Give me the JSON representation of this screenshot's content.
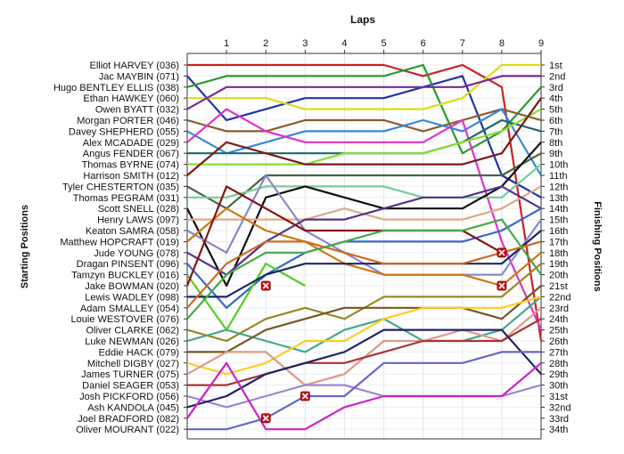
{
  "chart_data": {
    "type": "line",
    "title": "Laps",
    "ylabel_left": "Starting Positions",
    "ylabel_right": "Finishing Positions",
    "laps": [
      "1",
      "2",
      "3",
      "4",
      "5",
      "6",
      "7",
      "8",
      "9"
    ],
    "positions": [
      "1st",
      "2nd",
      "3rd",
      "4th",
      "5th",
      "6th",
      "7th",
      "8th",
      "9th",
      "10th",
      "11th",
      "12th",
      "13th",
      "14th",
      "15th",
      "16th",
      "17th",
      "18th",
      "19th",
      "20th",
      "21st",
      "22nd",
      "23rd",
      "24th",
      "25th",
      "26th",
      "27th",
      "28th",
      "29th",
      "30th",
      "31st",
      "32nd",
      "33rd",
      "34th"
    ],
    "grid": true,
    "series": [
      {
        "name": "Elliot HARVEY (036)",
        "color": "#cc2222",
        "values": [
          1,
          1,
          1,
          1,
          1,
          2,
          1,
          3,
          26
        ]
      },
      {
        "name": "Jac MAYBIN (071)",
        "color": "#2233aa",
        "values": [
          6,
          5,
          4,
          4,
          4,
          3,
          2,
          11,
          13
        ]
      },
      {
        "name": "Hugo BENTLEY ELLIS (038)",
        "color": "#2a9a2a",
        "values": [
          2,
          2,
          2,
          2,
          2,
          1,
          9,
          7,
          3
        ]
      },
      {
        "name": "Ethan HAWKEY (060)",
        "color": "#dddd11",
        "values": [
          4,
          4,
          5,
          5,
          5,
          5,
          4,
          1,
          1
        ]
      },
      {
        "name": "Owen BYATT (032)",
        "color": "#7a2a9a",
        "values": [
          3,
          3,
          3,
          3,
          3,
          3,
          3,
          2,
          2
        ]
      },
      {
        "name": "Morgan PORTER (046)",
        "color": "#8a5a2a",
        "values": [
          7,
          7,
          6,
          6,
          6,
          7,
          6,
          5,
          6
        ]
      },
      {
        "name": "Davey SHEPHERD (055)",
        "color": "#3388dd",
        "values": [
          9,
          8,
          7,
          7,
          7,
          6,
          7,
          5,
          11
        ]
      },
      {
        "name": "Alex MCADADE (029)",
        "color": "#dd33cc",
        "values": [
          5,
          7,
          8,
          8,
          8,
          8,
          6,
          17,
          25
        ]
      },
      {
        "name": "Angus FENDER (067)",
        "color": "#1a6a6a",
        "values": [
          9,
          9,
          9,
          9,
          9,
          9,
          8,
          6,
          7
        ]
      },
      {
        "name": "Thomas BYRNE (074)",
        "color": "#88dd33",
        "values": [
          10,
          10,
          10,
          9,
          9,
          9,
          8,
          7,
          5
        ]
      },
      {
        "name": "Harrison SMITH (012)",
        "color": "#7a1a1a",
        "values": [
          8,
          9,
          10,
          10,
          10,
          10,
          10,
          9,
          4
        ]
      },
      {
        "name": "Tyler CHESTERTON (035)",
        "color": "#446644",
        "values": [
          14,
          11,
          11,
          11,
          11,
          11,
          11,
          11,
          9
        ]
      },
      {
        "name": "Thomas PEGRAM (031)",
        "color": "#77cc99",
        "values": [
          13,
          12,
          12,
          12,
          12,
          13,
          13,
          13,
          10
        ]
      },
      {
        "name": "Scott SNELL (028)",
        "color": "#111111",
        "values": [
          21,
          13,
          12,
          13,
          14,
          14,
          14,
          12,
          8
        ]
      },
      {
        "name": "Henry LAWS (097)",
        "color": "#ddaa88",
        "values": [
          15,
          15,
          15,
          14,
          15,
          15,
          15,
          14,
          12
        ]
      },
      {
        "name": "Keaton SAMRA (058)",
        "color": "#8888cc",
        "values": [
          18,
          11,
          16,
          18,
          20,
          20,
          20,
          20,
          15
        ]
      },
      {
        "name": "Matthew HOPCRAFT (019)",
        "color": "#cc7711",
        "values": [
          14,
          16,
          17,
          19,
          20,
          20,
          20,
          21,
          18
        ]
      },
      {
        "name": "Jude YOUNG (078)",
        "color": "#553388",
        "values": [
          20,
          17,
          15,
          15,
          14,
          13,
          13,
          12,
          14
        ]
      },
      {
        "name": "Dragan PINSENT (096)",
        "color": "#3366cc",
        "values": [
          23,
          20,
          18,
          17,
          17,
          17,
          17,
          16,
          14
        ]
      },
      {
        "name": "Tamzyn BUCKLEY (016)",
        "color": "#55cc22",
        "values": [
          25,
          19,
          21
        ]
      },
      {
        "name": "Jake BOWMAN (020)",
        "color": "#881111",
        "values": [
          12,
          14,
          16,
          16,
          16,
          16,
          16,
          18
        ]
      },
      {
        "name": "Lewis WADLEY (098)",
        "color": "#1a2a66",
        "values": [
          22,
          20,
          19,
          19,
          19,
          19,
          19,
          19,
          16
        ]
      },
      {
        "name": "Adam SMALLEY (054)",
        "color": "#d06820",
        "values": [
          19,
          17,
          17,
          18,
          19,
          19,
          19,
          18,
          17
        ]
      },
      {
        "name": "Louie WESTOVER (076)",
        "color": "#44aa44",
        "values": [
          20,
          18,
          18,
          17,
          16,
          16,
          16,
          15,
          20
        ]
      },
      {
        "name": "Oliver CLARKE (062)",
        "color": "#998822",
        "values": [
          26,
          24,
          23,
          24,
          22,
          22,
          22,
          22,
          19
        ]
      },
      {
        "name": "Luke NEWMAN (026)",
        "color": "#44aa88",
        "values": [
          25,
          26,
          27,
          25,
          24,
          26,
          26,
          25,
          22
        ]
      },
      {
        "name": "Eddie HACK (079)",
        "color": "#7a5522",
        "values": [
          27,
          25,
          24,
          23,
          23,
          23,
          23,
          24,
          21
        ]
      },
      {
        "name": "Mitchell DIGBY (027)",
        "color": "#ffcc22",
        "values": [
          29,
          28,
          26,
          26,
          24,
          23,
          23,
          23,
          22
        ]
      },
      {
        "name": "James TURNER (075)",
        "color": "#dd9988",
        "values": [
          27,
          27,
          30,
          29,
          26,
          26,
          25,
          26,
          23
        ]
      },
      {
        "name": "Daniel SEAGER (053)",
        "color": "#aa3333",
        "values": [
          30,
          29,
          28,
          28,
          27,
          26,
          26,
          26,
          24
        ]
      },
      {
        "name": "Josh PICKFORD (056)",
        "color": "#9988cc",
        "values": [
          32,
          31,
          30,
          30,
          31,
          31,
          31,
          31,
          30
        ]
      },
      {
        "name": "Ash KANDOLA (045)",
        "color": "#222266",
        "values": [
          31,
          29,
          28,
          27,
          25,
          25,
          25,
          25,
          29
        ]
      },
      {
        "name": "Joel BRADFORD (082)",
        "color": "#cc22cc",
        "values": [
          28,
          34,
          34,
          32,
          31,
          31,
          31,
          31,
          28
        ]
      },
      {
        "name": "Oliver MOURANT (022)",
        "color": "#6666cc",
        "values": [
          34,
          33,
          31,
          31,
          28,
          28,
          28,
          27,
          27
        ]
      }
    ],
    "retirements": [
      {
        "lap": "2",
        "position": 21
      },
      {
        "lap": "2",
        "position": 33
      },
      {
        "lap": "3",
        "position": 31
      },
      {
        "lap": "8",
        "position": 18
      },
      {
        "lap": "8",
        "position": 21
      }
    ]
  }
}
